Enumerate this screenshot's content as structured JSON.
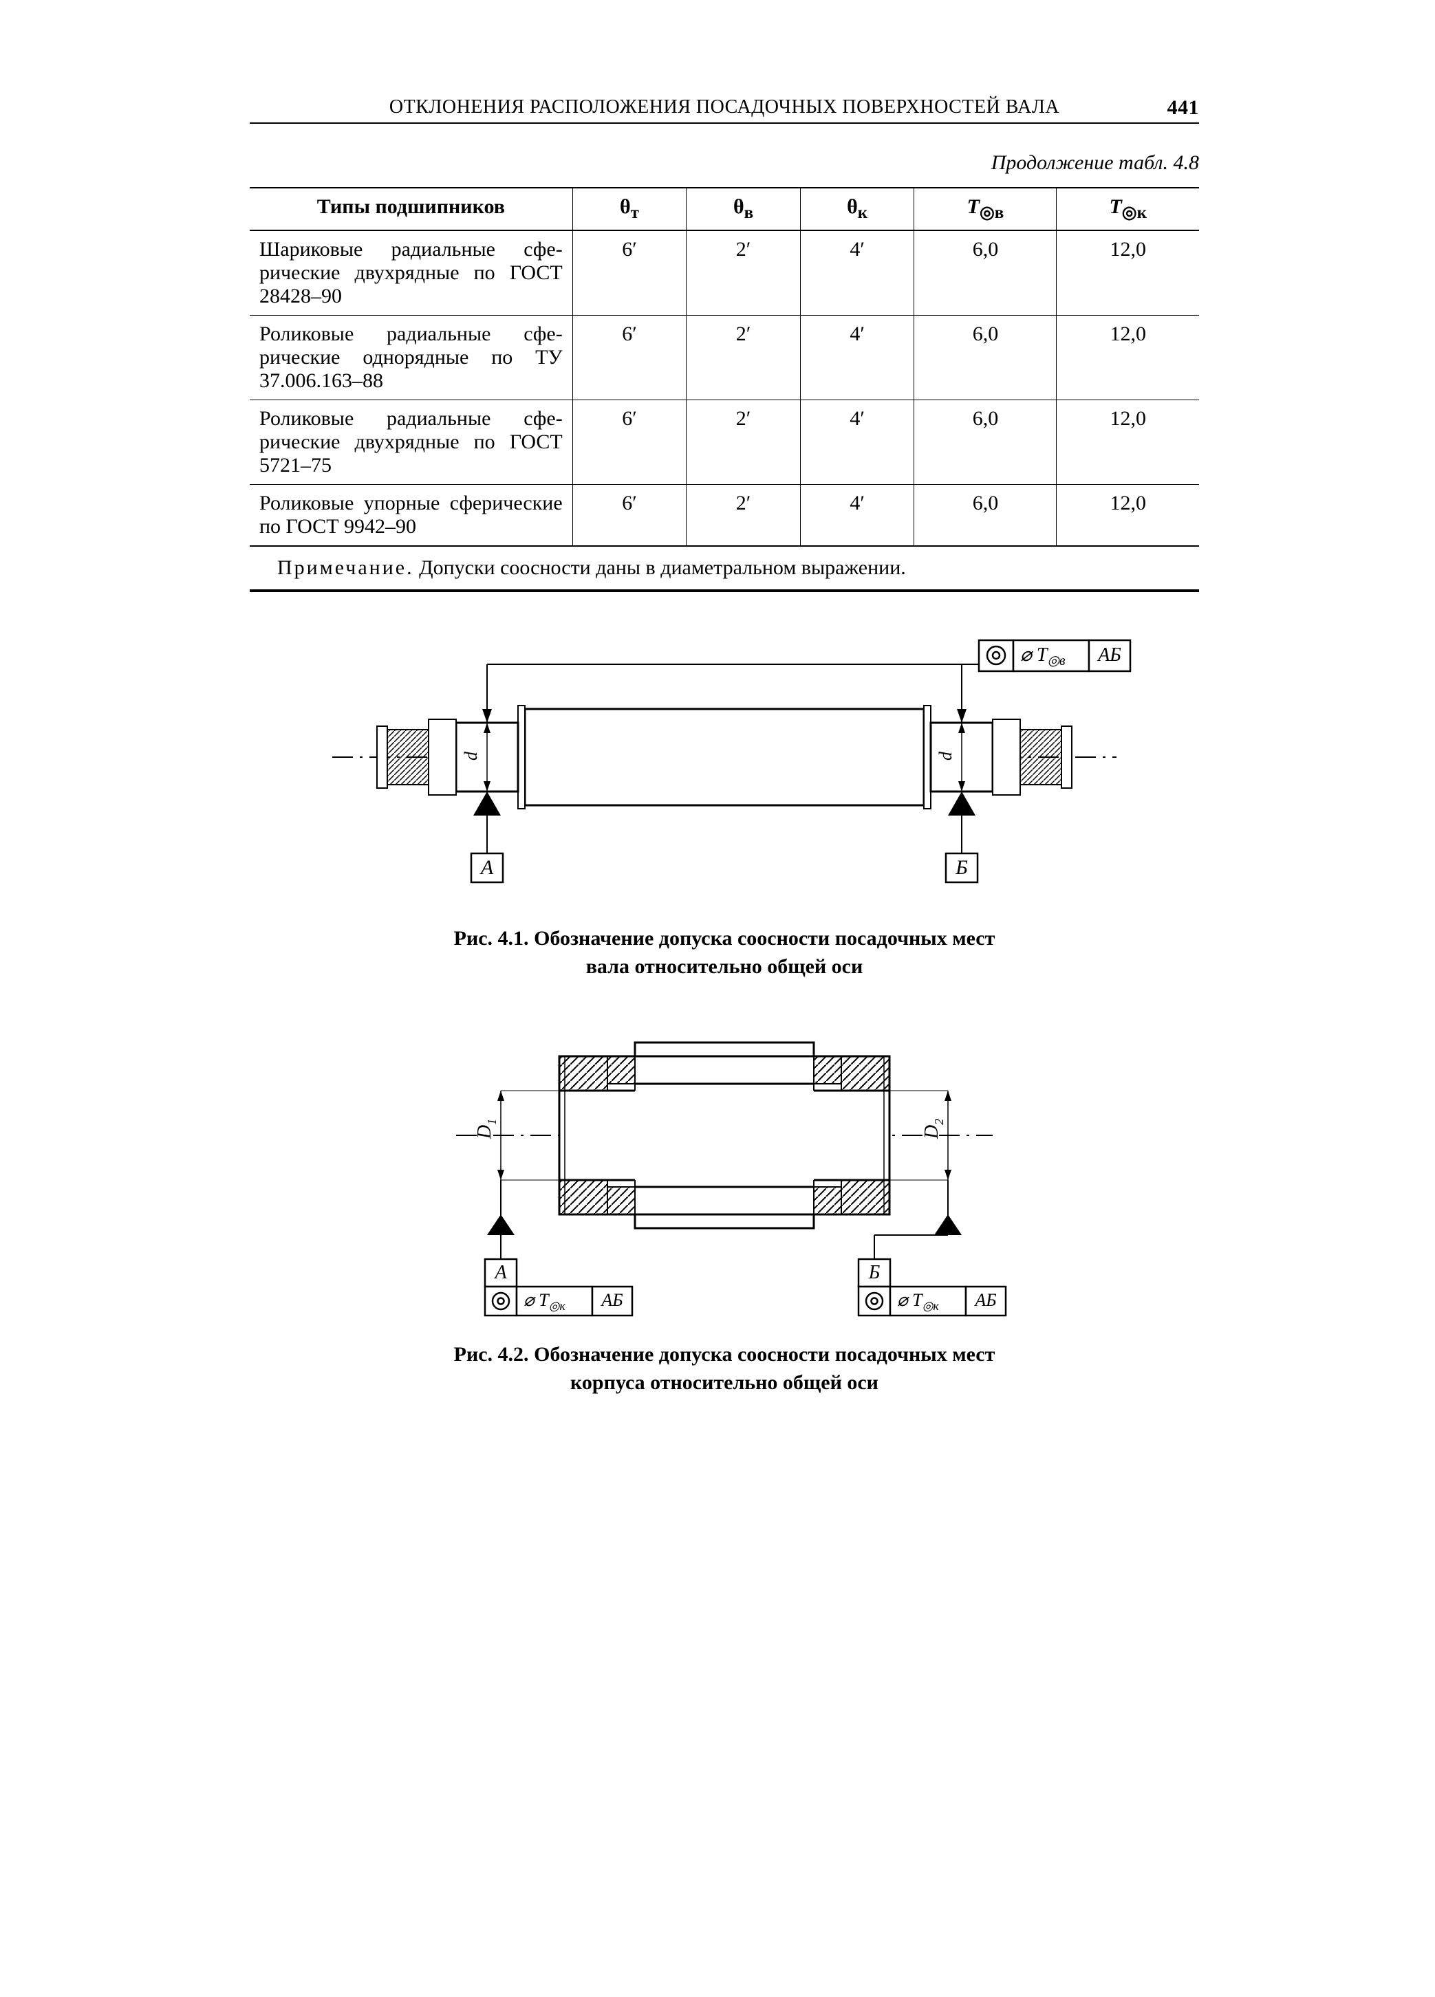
{
  "header": {
    "running_title": "ОТКЛОНЕНИЯ РАСПОЛОЖЕНИЯ ПОСАДОЧНЫХ ПОВЕРХНОСТЕЙ ВАЛА",
    "page_number": "441"
  },
  "table": {
    "continuation": "Продолжение табл. 4.8",
    "columns": [
      {
        "label": "Типы подшипников",
        "width": "34%",
        "align": "center"
      },
      {
        "label": "θт",
        "html": "θ<sub>т</sub>",
        "width": "12%"
      },
      {
        "label": "θв",
        "html": "θ<sub>в</sub>",
        "width": "12%"
      },
      {
        "label": "θк",
        "html": "θ<sub>к</sub>",
        "width": "12%"
      },
      {
        "label": "T◎в",
        "html": "<i>T</i><sub>◎в</sub>",
        "width": "15%"
      },
      {
        "label": "T◎к",
        "html": "<i>T</i><sub>◎к</sub>",
        "width": "15%"
      }
    ],
    "rows": [
      [
        "Шариковые радиальные сфе­рические двухрядные по ГОСТ 28428–90",
        "6′",
        "2′",
        "4′",
        "6,0",
        "12,0"
      ],
      [
        "Роликовые радиальные сфе­рические однорядные по ТУ 37.006.163–88",
        "6′",
        "2′",
        "4′",
        "6,0",
        "12,0"
      ],
      [
        "Роликовые радиальные сфе­рические двухрядные по ГОСТ 5721–75",
        "6′",
        "2′",
        "4′",
        "6,0",
        "12,0"
      ],
      [
        "Роликовые упорные сфе­рические по ГОСТ 9942–90",
        "6′",
        "2′",
        "4′",
        "6,0",
        "12,0"
      ]
    ],
    "note_label": "Примечание.",
    "note_text": "Допуски соосности даны в диаметральном выражении."
  },
  "figures": {
    "fig1": {
      "number": "Рис. 4.1.",
      "title_line1": "Обозначение допуска соосности посадочных мест",
      "title_line2": "вала относительно общей оси",
      "datum_A": "А",
      "datum_B": "Б",
      "datum_ref": "АБ",
      "tol_label": "⌀ T",
      "tol_sub": "◎в",
      "dim_d": "d",
      "colors": {
        "stroke": "#000000",
        "fill": "#ffffff",
        "hatch": "#000000"
      }
    },
    "fig2": {
      "number": "Рис. 4.2.",
      "title_line1": "Обозначение допуска соосности посадочных мест",
      "title_line2": "корпуса относительно общей оси",
      "datum_A": "А",
      "datum_B": "Б",
      "datum_ref": "АБ",
      "tol_label": "⌀ T",
      "tol_sub": "◎к",
      "dim_D1": "D",
      "dim_D1_sub": "1",
      "dim_D2": "D",
      "dim_D2_sub": "2",
      "colors": {
        "stroke": "#000000",
        "fill": "#ffffff",
        "hatch": "#000000"
      }
    }
  }
}
